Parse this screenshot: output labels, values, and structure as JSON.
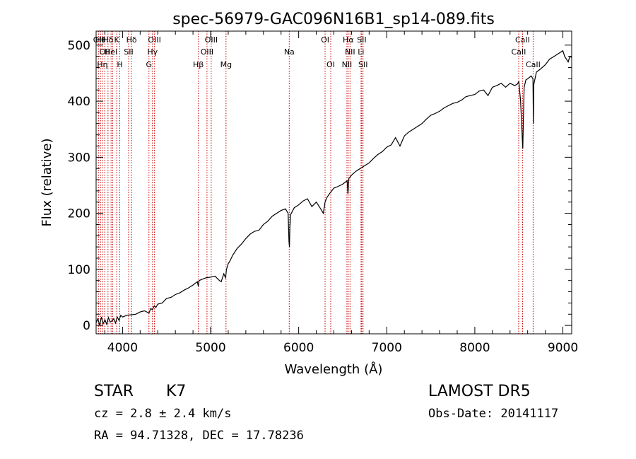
{
  "chart_data": {
    "type": "line",
    "title": "spec-56979-GAC096N16B1_sp14-089.fits",
    "xlabel": "Wavelength (Å)",
    "ylabel": "Flux (relative)",
    "xlim": [
      3700,
      9100
    ],
    "ylim": [
      -15,
      525
    ],
    "xticks": [
      4000,
      5000,
      6000,
      7000,
      8000,
      9000
    ],
    "yticks": [
      0,
      100,
      200,
      300,
      400,
      500
    ],
    "grid": false,
    "line_color": "#000000",
    "marker_color": "#cc0000",
    "series": [
      {
        "x": [
          3700,
          3720,
          3740,
          3760,
          3780,
          3800,
          3820,
          3840,
          3860,
          3880,
          3900,
          3920,
          3940,
          3960,
          3980,
          4000,
          4050,
          4100,
          4150,
          4200,
          4250,
          4300,
          4320,
          4340,
          4360,
          4380,
          4400,
          4450,
          4500,
          4550,
          4600,
          4650,
          4700,
          4750,
          4800,
          4850,
          4860,
          4870,
          4900,
          4950,
          5000,
          5050,
          5100,
          5120,
          5150,
          5170,
          5180,
          5200,
          5220,
          5250,
          5300,
          5350,
          5400,
          5450,
          5500,
          5550,
          5600,
          5650,
          5700,
          5750,
          5800,
          5850,
          5880,
          5890,
          5895,
          5900,
          5910,
          5950,
          6000,
          6050,
          6100,
          6150,
          6200,
          6250,
          6280,
          6300,
          6320,
          6350,
          6400,
          6450,
          6500,
          6550,
          6560,
          6565,
          6570,
          6600,
          6650,
          6700,
          6750,
          6800,
          6850,
          6900,
          6950,
          7000,
          7050,
          7100,
          7150,
          7200,
          7250,
          7300,
          7350,
          7400,
          7450,
          7500,
          7550,
          7600,
          7650,
          7700,
          7750,
          7800,
          7850,
          7900,
          7950,
          8000,
          8050,
          8100,
          8150,
          8200,
          8250,
          8300,
          8350,
          8400,
          8450,
          8480,
          8500,
          8520,
          8540,
          8545,
          8550,
          8560,
          8580,
          8600,
          8640,
          8660,
          8665,
          8670,
          8700,
          8750,
          8800,
          8850,
          8900,
          8950,
          9000,
          9020,
          9040,
          9060,
          9080,
          9100
        ],
        "y": [
          5,
          12,
          0,
          15,
          3,
          10,
          2,
          14,
          6,
          8,
          12,
          4,
          15,
          9,
          18,
          15,
          18,
          19,
          20,
          24,
          26,
          22,
          30,
          28,
          35,
          32,
          38,
          40,
          48,
          50,
          55,
          58,
          63,
          67,
          72,
          78,
          70,
          80,
          82,
          85,
          86,
          88,
          80,
          78,
          92,
          85,
          100,
          110,
          115,
          125,
          137,
          145,
          155,
          163,
          168,
          170,
          180,
          186,
          195,
          200,
          205,
          208,
          200,
          150,
          140,
          175,
          198,
          210,
          215,
          222,
          226,
          212,
          220,
          208,
          200,
          220,
          228,
          235,
          245,
          248,
          252,
          258,
          235,
          250,
          262,
          268,
          275,
          280,
          285,
          290,
          298,
          305,
          310,
          318,
          322,
          335,
          320,
          338,
          345,
          350,
          355,
          360,
          368,
          375,
          378,
          382,
          388,
          392,
          396,
          398,
          402,
          408,
          410,
          412,
          418,
          420,
          410,
          425,
          428,
          432,
          425,
          432,
          428,
          430,
          435,
          400,
          330,
          315,
          360,
          425,
          438,
          440,
          445,
          440,
          360,
          430,
          452,
          458,
          465,
          475,
          480,
          485,
          490,
          480,
          475,
          470,
          480,
          478
        ]
      }
    ],
    "lines": [
      {
        "wl": 3727,
        "rows": [
          "OII"
        ]
      },
      {
        "wl": 3750,
        "rows": [
          "Hθ"
        ]
      },
      {
        "wl": 3771,
        "rows": [
          "",
          "",
          "Hη"
        ]
      },
      {
        "wl": 3798,
        "rows": [
          "",
          "OII"
        ]
      },
      {
        "wl": 3835,
        "rows": [
          "Hδ",
          "",
          ""
        ]
      },
      {
        "wl": 3870,
        "rows": [
          "",
          "HeI"
        ]
      },
      {
        "wl": 3889,
        "rows": [
          "",
          "",
          ""
        ]
      },
      {
        "wl": 3934,
        "rows": [
          "K"
        ]
      },
      {
        "wl": 3969,
        "rows": [
          "",
          "",
          "H"
        ]
      },
      {
        "wl": 4069,
        "rows": [
          "",
          "SII"
        ]
      },
      {
        "wl": 4102,
        "rows": [
          "Hδ"
        ]
      },
      {
        "wl": 4300,
        "rows": [
          "",
          "",
          "G"
        ]
      },
      {
        "wl": 4340,
        "rows": [
          "",
          "Hγ"
        ]
      },
      {
        "wl": 4363,
        "rows": [
          "OIII"
        ]
      },
      {
        "wl": 4861,
        "rows": [
          "",
          "",
          "Hβ"
        ]
      },
      {
        "wl": 4959,
        "rows": [
          "",
          "OIII"
        ]
      },
      {
        "wl": 5007,
        "rows": [
          "OIII"
        ]
      },
      {
        "wl": 5175,
        "rows": [
          "",
          "",
          "Mg"
        ]
      },
      {
        "wl": 5893,
        "rows": [
          "",
          "Na"
        ]
      },
      {
        "wl": 6300,
        "rows": [
          "OI"
        ]
      },
      {
        "wl": 6364,
        "rows": [
          "",
          "",
          "OI"
        ]
      },
      {
        "wl": 6548,
        "rows": [
          "",
          "",
          "NII"
        ]
      },
      {
        "wl": 6563,
        "rows": [
          "Hα"
        ]
      },
      {
        "wl": 6583,
        "rows": [
          "",
          "NII"
        ]
      },
      {
        "wl": 6708,
        "rows": [
          "",
          "Li"
        ]
      },
      {
        "wl": 6716,
        "rows": [
          "SII"
        ]
      },
      {
        "wl": 6731,
        "rows": [
          "",
          "",
          "SII"
        ]
      },
      {
        "wl": 8498,
        "rows": [
          "",
          "CaII"
        ]
      },
      {
        "wl": 8542,
        "rows": [
          "CaII"
        ]
      },
      {
        "wl": 8662,
        "rows": [
          "",
          "",
          "CaII"
        ]
      }
    ]
  },
  "info": {
    "class_label": "STAR",
    "subclass": "K7",
    "survey": "LAMOST DR5",
    "cz": "cz = 2.8 ± 2.4 km/s",
    "obs_date": "Obs-Date: 20141117",
    "coords": "RA =  94.71328, DEC =  17.78236"
  }
}
